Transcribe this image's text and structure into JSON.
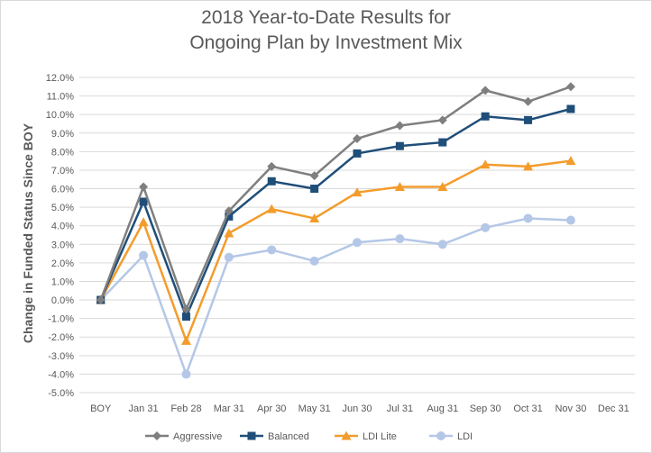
{
  "chart_data": {
    "type": "line",
    "title_line1": "2018 Year-to-Date Results for",
    "title_line2": "Ongoing Plan by Investment Mix",
    "xlabel": "",
    "ylabel": "Change in Funded Status Since BOY",
    "categories": [
      "BOY",
      "Jan 31",
      "Feb 28",
      "Mar 31",
      "Apr 30",
      "May 31",
      "Jun 30",
      "Jul 31",
      "Aug 31",
      "Sep 30",
      "Oct 31",
      "Nov 30",
      "Dec 31"
    ],
    "ylim": [
      -5.0,
      12.0
    ],
    "ystep": 1.0,
    "ytick_format": "percent_1dp",
    "grid": true,
    "legend_position": "bottom",
    "series": [
      {
        "name": "Aggressive",
        "color": "#7f7f7f",
        "marker": "diamond",
        "values": [
          0.0,
          6.1,
          -0.5,
          4.8,
          7.2,
          6.7,
          8.7,
          9.4,
          9.7,
          11.3,
          10.7,
          11.5,
          null
        ]
      },
      {
        "name": "Balanced",
        "color": "#1f4e79",
        "marker": "square",
        "values": [
          0.0,
          5.3,
          -0.9,
          4.5,
          6.4,
          6.0,
          7.9,
          8.3,
          8.5,
          9.9,
          9.7,
          10.3,
          null
        ]
      },
      {
        "name": "LDI Lite",
        "color": "#f39c2b",
        "marker": "triangle",
        "values": [
          0.0,
          4.2,
          -2.2,
          3.6,
          4.9,
          4.4,
          5.8,
          6.1,
          6.1,
          7.3,
          7.2,
          7.5,
          null
        ]
      },
      {
        "name": "LDI",
        "color": "#b4c7e7",
        "marker": "circle",
        "values": [
          0.0,
          2.4,
          -4.0,
          2.3,
          2.7,
          2.1,
          3.1,
          3.3,
          3.0,
          3.9,
          4.4,
          4.3,
          null
        ]
      }
    ]
  }
}
